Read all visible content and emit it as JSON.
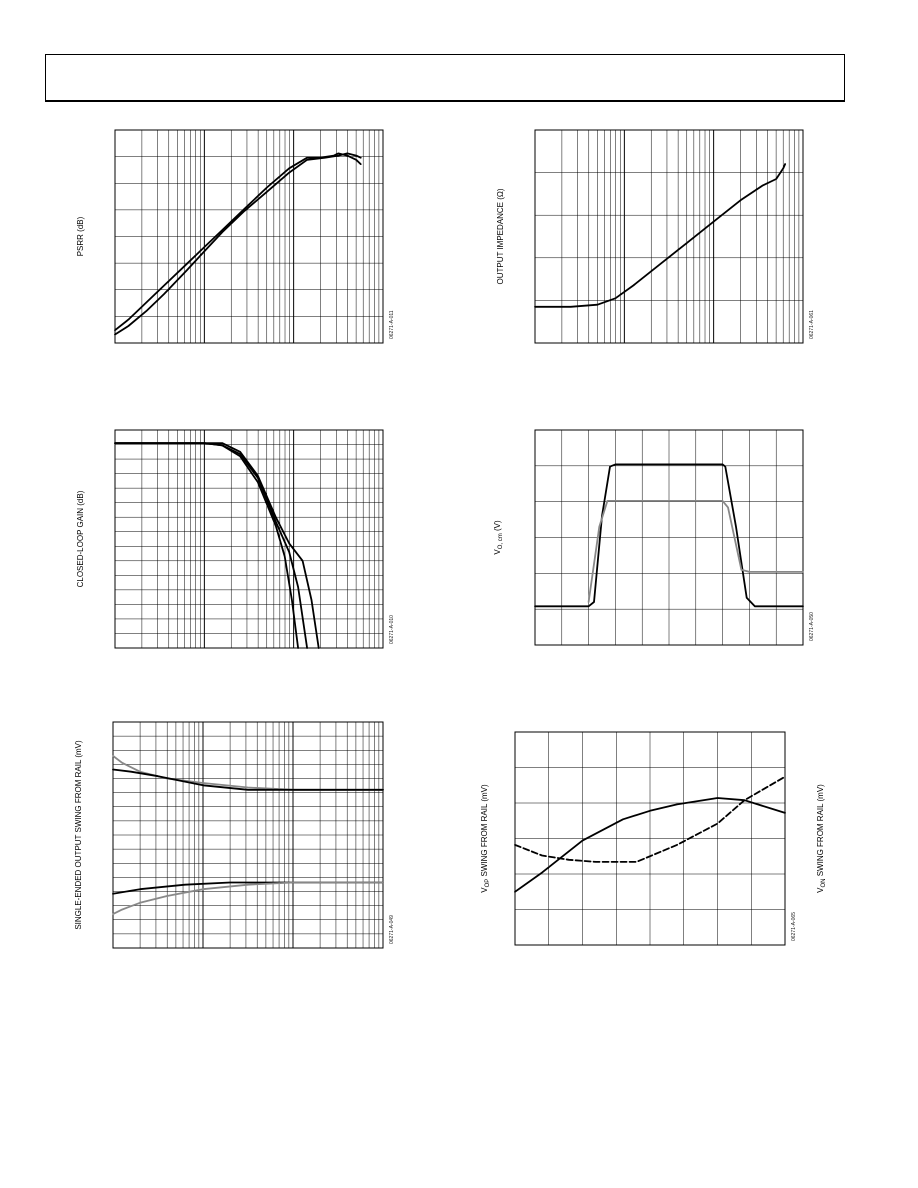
{
  "header": {
    "title": ""
  },
  "chart_data": [
    {
      "id": "psrr",
      "type": "line",
      "ylabel": "PSRR (dB)",
      "figure_id": "06271-A-011",
      "x_scale": "log",
      "x_decades": 3,
      "grid_rows": 8,
      "series": [
        {
          "color": "#000000",
          "points": [
            [
              0,
              0.06
            ],
            [
              0.15,
              0.11
            ],
            [
              0.35,
              0.19
            ],
            [
              0.55,
              0.27
            ],
            [
              0.8,
              0.37
            ],
            [
              1.0,
              0.45
            ],
            [
              1.2,
              0.53
            ],
            [
              1.45,
              0.63
            ],
            [
              1.7,
              0.73
            ],
            [
              1.95,
              0.82
            ],
            [
              2.15,
              0.87
            ],
            [
              2.3,
              0.87
            ],
            [
              2.45,
              0.88
            ],
            [
              2.5,
              0.89
            ],
            [
              2.6,
              0.88
            ],
            [
              2.7,
              0.86
            ],
            [
              2.75,
              0.84
            ]
          ]
        },
        {
          "color": "#000000",
          "points": [
            [
              0,
              0.04
            ],
            [
              0.15,
              0.08
            ],
            [
              0.35,
              0.15
            ],
            [
              0.55,
              0.23
            ],
            [
              0.8,
              0.34
            ],
            [
              1.0,
              0.43
            ],
            [
              1.2,
              0.52
            ],
            [
              1.45,
              0.62
            ],
            [
              1.7,
              0.71
            ],
            [
              1.95,
              0.8
            ],
            [
              2.15,
              0.86
            ],
            [
              2.35,
              0.87
            ],
            [
              2.5,
              0.88
            ],
            [
              2.6,
              0.89
            ],
            [
              2.7,
              0.88
            ],
            [
              2.75,
              0.87
            ]
          ]
        }
      ]
    },
    {
      "id": "output-impedance",
      "type": "line",
      "ylabel": "OUTPUT IMPEDANCE (Ω)",
      "figure_id": "06271-A-061",
      "x_scale": "log",
      "x_decades": 3,
      "grid_rows": 5,
      "series": [
        {
          "color": "#000000",
          "points": [
            [
              0,
              0.17
            ],
            [
              0.4,
              0.17
            ],
            [
              0.7,
              0.18
            ],
            [
              0.9,
              0.21
            ],
            [
              1.1,
              0.27
            ],
            [
              1.4,
              0.37
            ],
            [
              1.7,
              0.47
            ],
            [
              2.0,
              0.57
            ],
            [
              2.3,
              0.67
            ],
            [
              2.55,
              0.74
            ],
            [
              2.7,
              0.77
            ],
            [
              2.78,
              0.82
            ],
            [
              2.8,
              0.84
            ]
          ]
        }
      ]
    },
    {
      "id": "closed-loop-gain",
      "type": "line",
      "ylabel": "CLOSED-LOOP GAIN (dB)",
      "figure_id": "06271-A-010",
      "x_scale": "log",
      "x_decades": 3,
      "grid_rows": 15,
      "series": [
        {
          "color": "#000000",
          "points": [
            [
              0,
              0.94
            ],
            [
              1.0,
              0.94
            ],
            [
              1.2,
              0.93
            ],
            [
              1.4,
              0.88
            ],
            [
              1.6,
              0.76
            ],
            [
              1.8,
              0.56
            ],
            [
              1.9,
              0.42
            ],
            [
              1.98,
              0.22
            ],
            [
              2.05,
              0.0
            ]
          ]
        },
        {
          "color": "#000000",
          "points": [
            [
              0,
              0.94
            ],
            [
              1.0,
              0.94
            ],
            [
              1.2,
              0.93
            ],
            [
              1.4,
              0.89
            ],
            [
              1.6,
              0.78
            ],
            [
              1.8,
              0.58
            ],
            [
              1.95,
              0.44
            ],
            [
              2.05,
              0.28
            ],
            [
              2.15,
              0.0
            ]
          ]
        },
        {
          "color": "#000000",
          "points": [
            [
              0,
              0.94
            ],
            [
              1.0,
              0.94
            ],
            [
              1.2,
              0.94
            ],
            [
              1.4,
              0.9
            ],
            [
              1.6,
              0.79
            ],
            [
              1.8,
              0.6
            ],
            [
              1.95,
              0.48
            ],
            [
              2.1,
              0.4
            ],
            [
              2.2,
              0.22
            ],
            [
              2.28,
              0.0
            ]
          ]
        }
      ]
    },
    {
      "id": "vocm-step",
      "type": "line",
      "ylabel": "V",
      "ylabel_sub": "O, cm",
      "ylabel_suffix": " (V)",
      "figure_id": "06271-A-050",
      "x_scale": "linear",
      "grid_cols": 10,
      "grid_rows": 6,
      "series": [
        {
          "color": "#000000",
          "points": [
            [
              0,
              0.18
            ],
            [
              0.2,
              0.18
            ],
            [
              0.22,
              0.2
            ],
            [
              0.25,
              0.6
            ],
            [
              0.28,
              0.83
            ],
            [
              0.3,
              0.84
            ],
            [
              0.7,
              0.84
            ],
            [
              0.71,
              0.83
            ],
            [
              0.75,
              0.55
            ],
            [
              0.79,
              0.22
            ],
            [
              0.82,
              0.18
            ],
            [
              1.0,
              0.18
            ]
          ]
        },
        {
          "color": "#888888",
          "points": [
            [
              0.2,
              0.2
            ],
            [
              0.24,
              0.55
            ],
            [
              0.27,
              0.67
            ],
            [
              0.3,
              0.67
            ],
            [
              0.7,
              0.67
            ],
            [
              0.72,
              0.64
            ],
            [
              0.77,
              0.35
            ],
            [
              0.8,
              0.34
            ],
            [
              1.0,
              0.34
            ]
          ]
        }
      ]
    },
    {
      "id": "output-swing-from-rail",
      "type": "line",
      "ylabel": "SINGLE-ENDED OUTPUT SWING FROM RAIL (mV)",
      "figure_id": "06271-A-049",
      "x_scale": "log",
      "x_decades": 3,
      "grid_rows": 16,
      "series": [
        {
          "color": "#888888",
          "points": [
            [
              0,
              0.85
            ],
            [
              0.1,
              0.82
            ],
            [
              0.3,
              0.78
            ],
            [
              0.6,
              0.75
            ],
            [
              1.0,
              0.73
            ],
            [
              1.5,
              0.71
            ],
            [
              2.0,
              0.7
            ],
            [
              3.0,
              0.7
            ]
          ]
        },
        {
          "color": "#000000",
          "points": [
            [
              0,
              0.79
            ],
            [
              0.2,
              0.78
            ],
            [
              0.5,
              0.76
            ],
            [
              1.0,
              0.72
            ],
            [
              1.5,
              0.7
            ],
            [
              2.0,
              0.7
            ],
            [
              3.0,
              0.7
            ]
          ]
        },
        {
          "color": "#000000",
          "points": [
            [
              0,
              0.24
            ],
            [
              0.3,
              0.26
            ],
            [
              0.8,
              0.28
            ],
            [
              1.3,
              0.29
            ],
            [
              2.0,
              0.29
            ],
            [
              3.0,
              0.29
            ]
          ]
        },
        {
          "color": "#888888",
          "points": [
            [
              0,
              0.15
            ],
            [
              0.1,
              0.17
            ],
            [
              0.3,
              0.2
            ],
            [
              0.6,
              0.23
            ],
            [
              1.0,
              0.26
            ],
            [
              1.5,
              0.28
            ],
            [
              2.0,
              0.29
            ],
            [
              3.0,
              0.29
            ]
          ]
        }
      ]
    },
    {
      "id": "swing-vs-temp",
      "type": "line",
      "ylabel_left": "V",
      "ylabel_left_sub": "OP",
      "ylabel_left_suffix": " SWING FROM RAIL (mV)",
      "ylabel_right": "V",
      "ylabel_right_sub": "ON",
      "ylabel_right_suffix": " SWING FROM RAIL (mV)",
      "figure_id": "06271-A-065",
      "x_scale": "linear",
      "grid_cols": 8,
      "grid_rows": 6,
      "series": [
        {
          "color": "#000000",
          "dash": "",
          "points": [
            [
              0,
              0.25
            ],
            [
              0.1,
              0.34
            ],
            [
              0.25,
              0.49
            ],
            [
              0.4,
              0.59
            ],
            [
              0.5,
              0.63
            ],
            [
              0.6,
              0.66
            ],
            [
              0.75,
              0.69
            ],
            [
              0.85,
              0.68
            ],
            [
              1.0,
              0.62
            ]
          ]
        },
        {
          "color": "#000000",
          "dash": "6,3",
          "points": [
            [
              0,
              0.47
            ],
            [
              0.1,
              0.42
            ],
            [
              0.2,
              0.4
            ],
            [
              0.3,
              0.39
            ],
            [
              0.45,
              0.39
            ],
            [
              0.6,
              0.47
            ],
            [
              0.75,
              0.57
            ],
            [
              0.85,
              0.68
            ],
            [
              1.0,
              0.79
            ]
          ]
        }
      ]
    }
  ]
}
